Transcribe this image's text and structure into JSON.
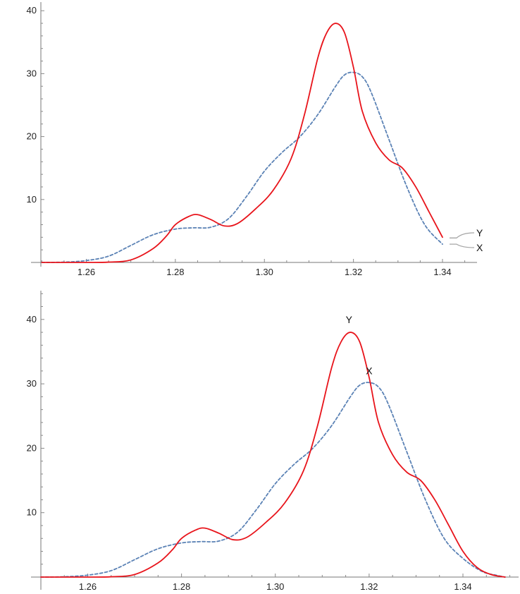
{
  "colors": {
    "series_Y": "#e8141b",
    "series_X": "#5b82b5",
    "callout": "#a5a5a5"
  },
  "chart_data": [
    {
      "type": "line",
      "title": "",
      "xlabel": "",
      "ylabel": "",
      "xlim": [
        1.25,
        1.349
      ],
      "ylim": [
        0,
        41.5
      ],
      "x_ticks": [
        1.26,
        1.28,
        1.3,
        1.32,
        1.34
      ],
      "x_tick_labels": [
        "1.26",
        "1.28",
        "1.30",
        "1.32",
        "1.34"
      ],
      "y_ticks": [
        10,
        20,
        30,
        40
      ],
      "y_tick_labels": [
        "10",
        "20",
        "30",
        "40"
      ],
      "label_placement": "right end with callout lines",
      "series": [
        {
          "name": "Y",
          "style": "solid",
          "color": "#e8141b",
          "x": [
            1.25,
            1.26,
            1.265,
            1.27,
            1.275,
            1.278,
            1.28,
            1.283,
            1.285,
            1.288,
            1.291,
            1.294,
            1.298,
            1.302,
            1.306,
            1.309,
            1.312,
            1.314,
            1.316,
            1.318,
            1.32,
            1.322,
            1.325,
            1.328,
            1.331,
            1.334,
            1.337,
            1.34
          ],
          "y": [
            0,
            0,
            0.05,
            0.4,
            2.2,
            4.2,
            6.0,
            7.3,
            7.6,
            6.8,
            5.8,
            6.2,
            8.5,
            11.5,
            16.5,
            23.5,
            32.5,
            36.5,
            38.0,
            36.5,
            31.0,
            24.0,
            19.0,
            16.3,
            15.0,
            12.0,
            8.0,
            4.0
          ]
        },
        {
          "name": "X",
          "style": "dashed",
          "color": "#5b82b5",
          "x": [
            1.25,
            1.255,
            1.26,
            1.265,
            1.27,
            1.275,
            1.28,
            1.284,
            1.288,
            1.292,
            1.296,
            1.3,
            1.304,
            1.308,
            1.312,
            1.316,
            1.318,
            1.32,
            1.322,
            1.324,
            1.328,
            1.332,
            1.336,
            1.34
          ],
          "y": [
            0,
            0.05,
            0.3,
            1.0,
            2.7,
            4.4,
            5.3,
            5.5,
            5.6,
            7.0,
            10.5,
            14.5,
            17.5,
            20.0,
            23.5,
            28.0,
            29.8,
            30.2,
            29.5,
            27.0,
            19.5,
            12.0,
            6.0,
            2.9
          ]
        }
      ]
    },
    {
      "type": "line",
      "title": "",
      "xlabel": "",
      "ylabel": "",
      "xlim": [
        1.25,
        1.349
      ],
      "ylim": [
        0,
        44.5
      ],
      "x_ticks": [
        1.26,
        1.28,
        1.3,
        1.32,
        1.34
      ],
      "x_tick_labels": [
        "1.26",
        "1.28",
        "1.30",
        "1.32",
        "1.34"
      ],
      "y_ticks": [
        10,
        20,
        30,
        40
      ],
      "y_tick_labels": [
        "10",
        "20",
        "30",
        "40"
      ],
      "label_placement": "above peaks",
      "series": [
        {
          "name": "Y",
          "style": "solid",
          "color": "#e8141b",
          "x": [
            1.25,
            1.26,
            1.265,
            1.27,
            1.275,
            1.278,
            1.28,
            1.283,
            1.285,
            1.288,
            1.291,
            1.294,
            1.298,
            1.302,
            1.306,
            1.309,
            1.312,
            1.314,
            1.316,
            1.318,
            1.32,
            1.322,
            1.325,
            1.328,
            1.331,
            1.334,
            1.337,
            1.34,
            1.343,
            1.346,
            1.349
          ],
          "y": [
            0,
            0,
            0.05,
            0.4,
            2.2,
            4.2,
            6.0,
            7.3,
            7.6,
            6.8,
            5.8,
            6.2,
            8.5,
            11.5,
            16.5,
            23.5,
            32.5,
            36.5,
            38.0,
            36.5,
            31.0,
            24.0,
            19.0,
            16.3,
            15.0,
            12.0,
            8.0,
            4.0,
            1.5,
            0.4,
            0
          ]
        },
        {
          "name": "X",
          "style": "dashed",
          "color": "#5b82b5",
          "x": [
            1.25,
            1.255,
            1.26,
            1.265,
            1.27,
            1.275,
            1.28,
            1.284,
            1.288,
            1.292,
            1.296,
            1.3,
            1.304,
            1.308,
            1.312,
            1.316,
            1.318,
            1.32,
            1.322,
            1.324,
            1.328,
            1.332,
            1.336,
            1.34,
            1.344,
            1.347,
            1.349
          ],
          "y": [
            0,
            0.05,
            0.3,
            1.0,
            2.7,
            4.4,
            5.3,
            5.5,
            5.6,
            7.0,
            10.5,
            14.5,
            17.5,
            20.0,
            23.5,
            28.0,
            29.8,
            30.2,
            29.5,
            27.0,
            19.5,
            12.0,
            6.0,
            2.9,
            0.9,
            0.3,
            0
          ]
        }
      ]
    }
  ]
}
